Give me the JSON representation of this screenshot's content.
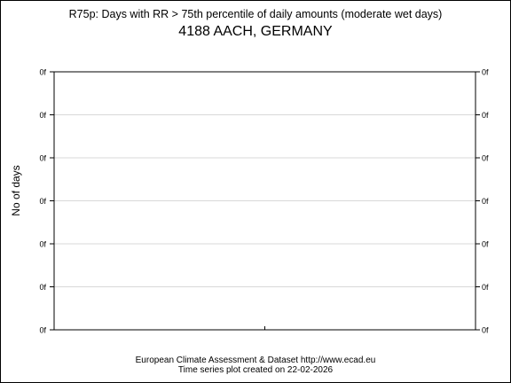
{
  "chart_data": {
    "type": "line",
    "title": "R75p: Days with RR > 75th percentile of daily amounts (moderate wet days)",
    "subtitle": "4188 AACH, GERMANY",
    "ylabel": "No of days",
    "xlabel": "",
    "y_ticks": [
      "0f",
      "0f",
      "0f",
      "0f",
      "0f",
      "0f",
      "0f"
    ],
    "x_ticks": [],
    "series": [],
    "grid": true,
    "legend": "none"
  },
  "footer": {
    "line1": "European Climate Assessment & Dataset  http://www.ecad.eu",
    "line2": "Time series plot created on 22-02-2026"
  }
}
